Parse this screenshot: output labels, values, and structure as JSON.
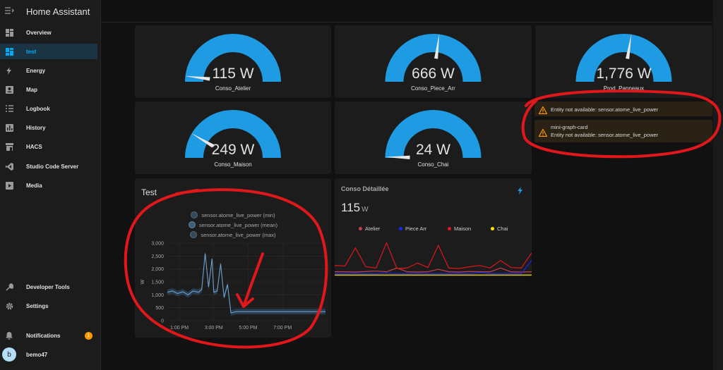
{
  "app": {
    "title": "Home Assistant"
  },
  "sidebar": {
    "items": [
      {
        "label": "Overview",
        "icon": "overview-icon",
        "active": false
      },
      {
        "label": "test",
        "icon": "dashboard-icon",
        "active": true
      },
      {
        "label": "Energy",
        "icon": "energy-icon",
        "active": false
      },
      {
        "label": "Map",
        "icon": "map-icon",
        "active": false
      },
      {
        "label": "Logbook",
        "icon": "logbook-icon",
        "active": false
      },
      {
        "label": "History",
        "icon": "history-icon",
        "active": false
      },
      {
        "label": "HACS",
        "icon": "hacs-icon",
        "active": false
      },
      {
        "label": "Studio Code Server",
        "icon": "vscode-icon",
        "active": false
      },
      {
        "label": "Media",
        "icon": "media-icon",
        "active": false
      }
    ],
    "bottom": {
      "developer_tools": "Developer Tools",
      "settings": "Settings",
      "notifications": "Notifications",
      "notifications_count": "1",
      "user": "bemo47",
      "user_initial": "b"
    }
  },
  "colors": {
    "accent": "#03a9f4",
    "gauge": "#1e9be2",
    "warning": "#ff9800",
    "annotation": "#e0171b"
  },
  "gauges": [
    {
      "value": "115 W",
      "name": "Conso_Atelier",
      "fraction": 0.038
    },
    {
      "value": "666 W",
      "name": "Conso_Piece_Arr",
      "fraction": 0.54
    },
    {
      "value": "1,776 W",
      "name": "Prod_Panneaux",
      "fraction": 0.55
    },
    {
      "value": "249 W",
      "name": "Conso_Maison",
      "fraction": 0.17
    },
    {
      "value": "24 W",
      "name": "Conso_Chai",
      "fraction": 0.006
    }
  ],
  "warnings": [
    {
      "title": "",
      "message": "Entity not available: sensor.atome_live_power"
    },
    {
      "title": "mini-graph-card",
      "message": "Entity not available: sensor.atome_live_power"
    }
  ],
  "test_card": {
    "title": "Test",
    "legend": [
      "sensor.atome_live_power (min)",
      "sensor.atome_live_power (mean)",
      "sensor.atome_live_power (max)"
    ]
  },
  "chart_data": [
    {
      "type": "line",
      "title": "Test",
      "xlabel": "",
      "ylabel": "W",
      "ylim": [
        0,
        3000
      ],
      "yticks": [
        "0",
        "500",
        "1,000",
        "1,500",
        "2,000",
        "2,500",
        "3,000"
      ],
      "xticks": [
        "1:00 PM",
        "3:00 PM",
        "5:00 PM",
        "7:00 PM"
      ],
      "series": [
        {
          "name": "sensor.atome_live_power (mean)",
          "x": [
            12.3,
            12.6,
            12.9,
            13.2,
            13.5,
            13.8,
            14.1,
            14.3,
            14.5,
            14.7,
            14.9,
            15.0,
            15.2,
            15.4,
            15.6,
            15.8,
            16.0,
            16.3,
            16.6,
            16.9,
            17.2,
            17.5,
            17.8,
            18.1,
            18.5,
            19.0,
            19.5,
            20.0,
            20.5,
            21.0,
            21.5
          ],
          "y": [
            1100,
            1150,
            1050,
            1120,
            1000,
            1150,
            1100,
            1200,
            2600,
            1300,
            2400,
            1100,
            1150,
            2200,
            900,
            1400,
            300,
            350,
            350,
            350,
            350,
            350,
            350,
            350,
            350,
            350,
            350,
            350,
            350,
            350,
            350
          ]
        }
      ]
    },
    {
      "type": "line",
      "title": "Conso Détaillée",
      "series": [
        {
          "name": "Atelier",
          "color": "#c2414f",
          "values": [
            150,
            150,
            140,
            160,
            180,
            150,
            300,
            150,
            140,
            150,
            250,
            150,
            140,
            160,
            150,
            150,
            300,
            150,
            140,
            150
          ]
        },
        {
          "name": "Piece Arr",
          "color": "#1a24ff",
          "values": [
            80,
            80,
            90,
            80,
            80,
            100,
            80,
            80,
            90,
            80,
            80,
            80,
            90,
            80,
            120,
            80,
            80,
            90,
            80,
            600
          ]
        },
        {
          "name": "Maison",
          "color": "#e0171b",
          "values": [
            400,
            380,
            1100,
            350,
            300,
            1300,
            280,
            300,
            500,
            320,
            1200,
            300,
            280,
            350,
            400,
            300,
            600,
            320,
            300,
            900
          ]
        },
        {
          "name": "Chai",
          "color": "#ffe600",
          "values": [
            20,
            20,
            20,
            20,
            20,
            20,
            20,
            20,
            20,
            20,
            20,
            20,
            20,
            20,
            20,
            20,
            20,
            20,
            20,
            20
          ]
        }
      ]
    }
  ],
  "conso_card": {
    "title": "Conso Détaillée",
    "value": "115",
    "unit": "W"
  }
}
